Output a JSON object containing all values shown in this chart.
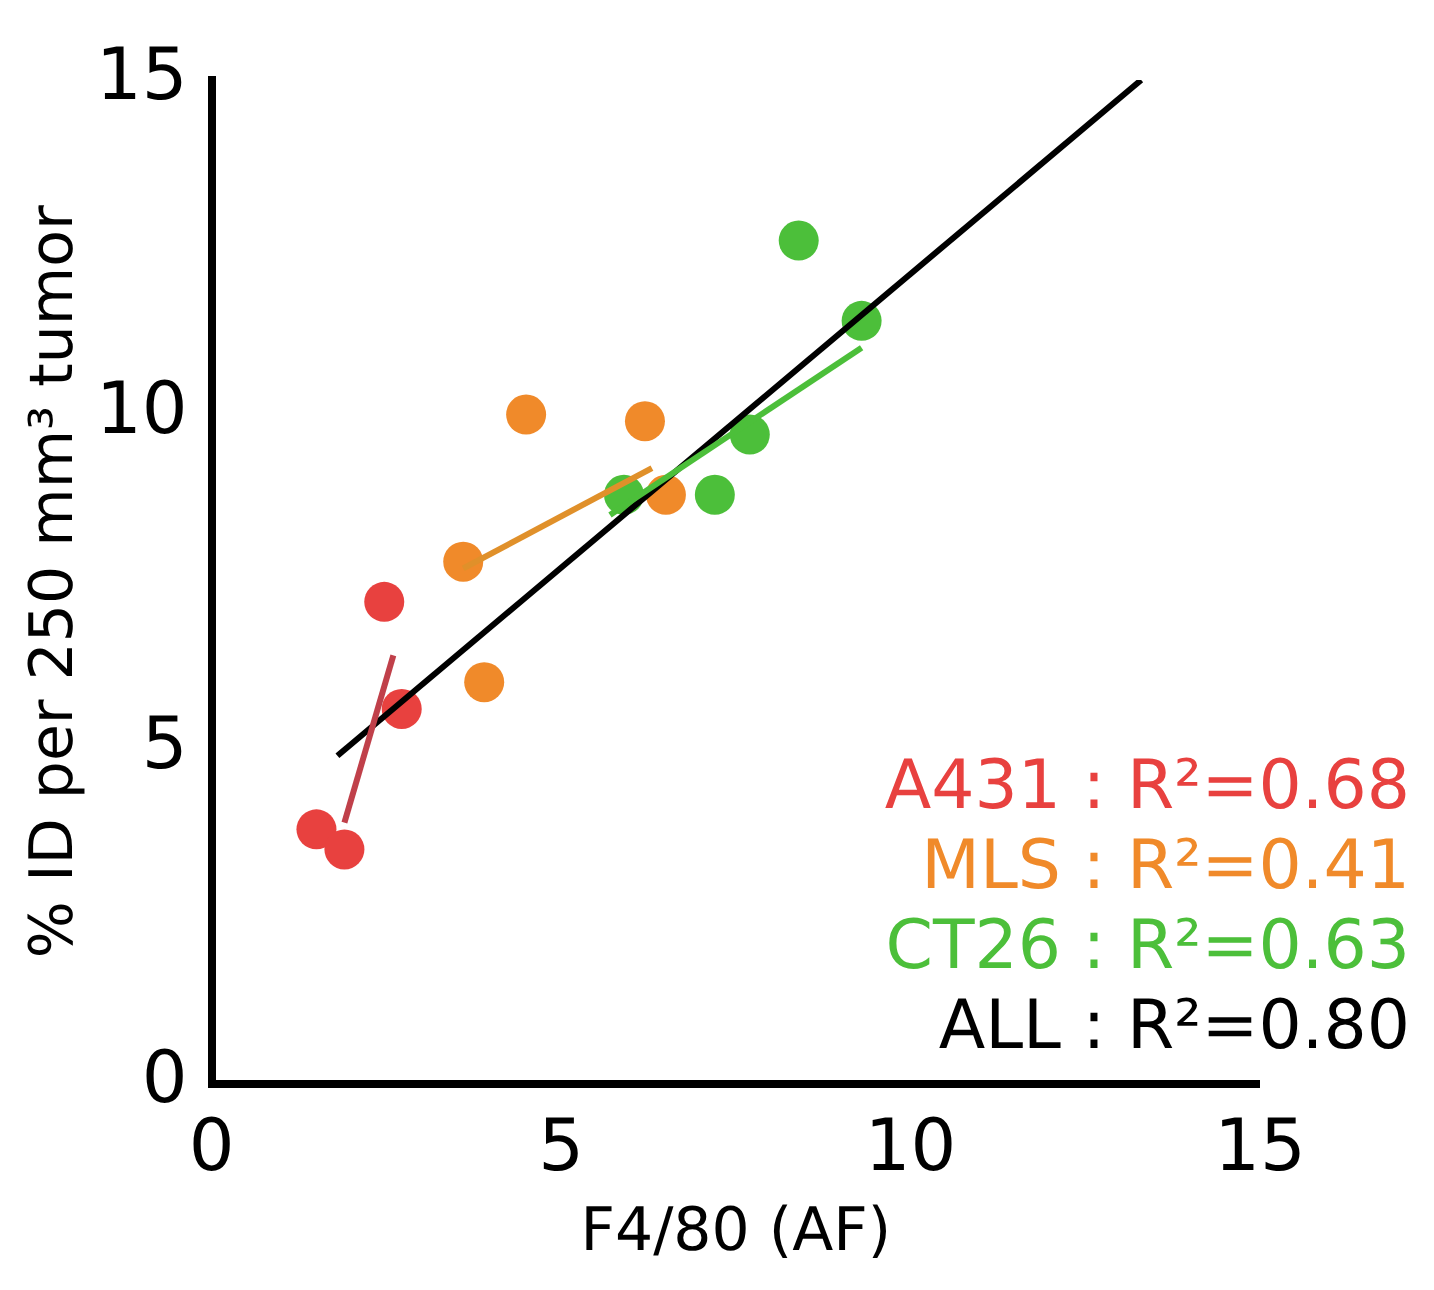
{
  "chart_data": {
    "type": "scatter",
    "xlabel": "F4/80 (AF)",
    "ylabel": "% ID per 250 mm³ tumor",
    "xlim": [
      0,
      15
    ],
    "xticks": [
      0,
      5,
      10,
      15
    ],
    "ylim": [
      0,
      15
    ],
    "yticks": [
      0,
      5,
      10,
      15
    ],
    "grid": false,
    "legend": "bottom right",
    "marker": "circle",
    "series": [
      {
        "name": "A431 : R²=0.68",
        "color": "#e8413f",
        "x": [
          2.47,
          2.72,
          1.5,
          1.9
        ],
        "values": [
          7.2,
          5.6,
          3.8,
          3.5
        ]
      },
      {
        "type": "line",
        "color": "#c0404a",
        "x": [
          1.9,
          2.6
        ],
        "values": [
          3.9,
          6.4
        ],
        "marker": "none",
        "line_style": "solid"
      },
      {
        "name": "MLS : R²=0.41",
        "color": "#f08a2a",
        "x": [
          4.5,
          6.2,
          3.6,
          3.9,
          6.5
        ],
        "values": [
          10.0,
          9.9,
          7.8,
          6.0,
          8.8
        ]
      },
      {
        "type": "line",
        "color": "#e0902a",
        "x": [
          3.6,
          6.3
        ],
        "values": [
          7.7,
          9.2
        ],
        "marker": "none",
        "line_style": "solid"
      },
      {
        "name": "CT26 : R²=0.63",
        "color": "#4cbf3a",
        "x": [
          8.4,
          9.3,
          7.7,
          5.9,
          7.2
        ],
        "values": [
          12.6,
          11.4,
          9.7,
          8.8,
          8.8
        ]
      },
      {
        "type": "line",
        "color": "#4cbf3a",
        "x": [
          5.7,
          9.3
        ],
        "values": [
          8.5,
          11.0
        ],
        "marker": "none",
        "line_style": "solid"
      },
      {
        "name": "ALL : R²=0.80",
        "type": "line",
        "color": "#000000",
        "x": [
          1.8,
          13.3
        ],
        "values": [
          4.9,
          15.0
        ],
        "marker": "none",
        "line_style": "solid"
      }
    ]
  }
}
